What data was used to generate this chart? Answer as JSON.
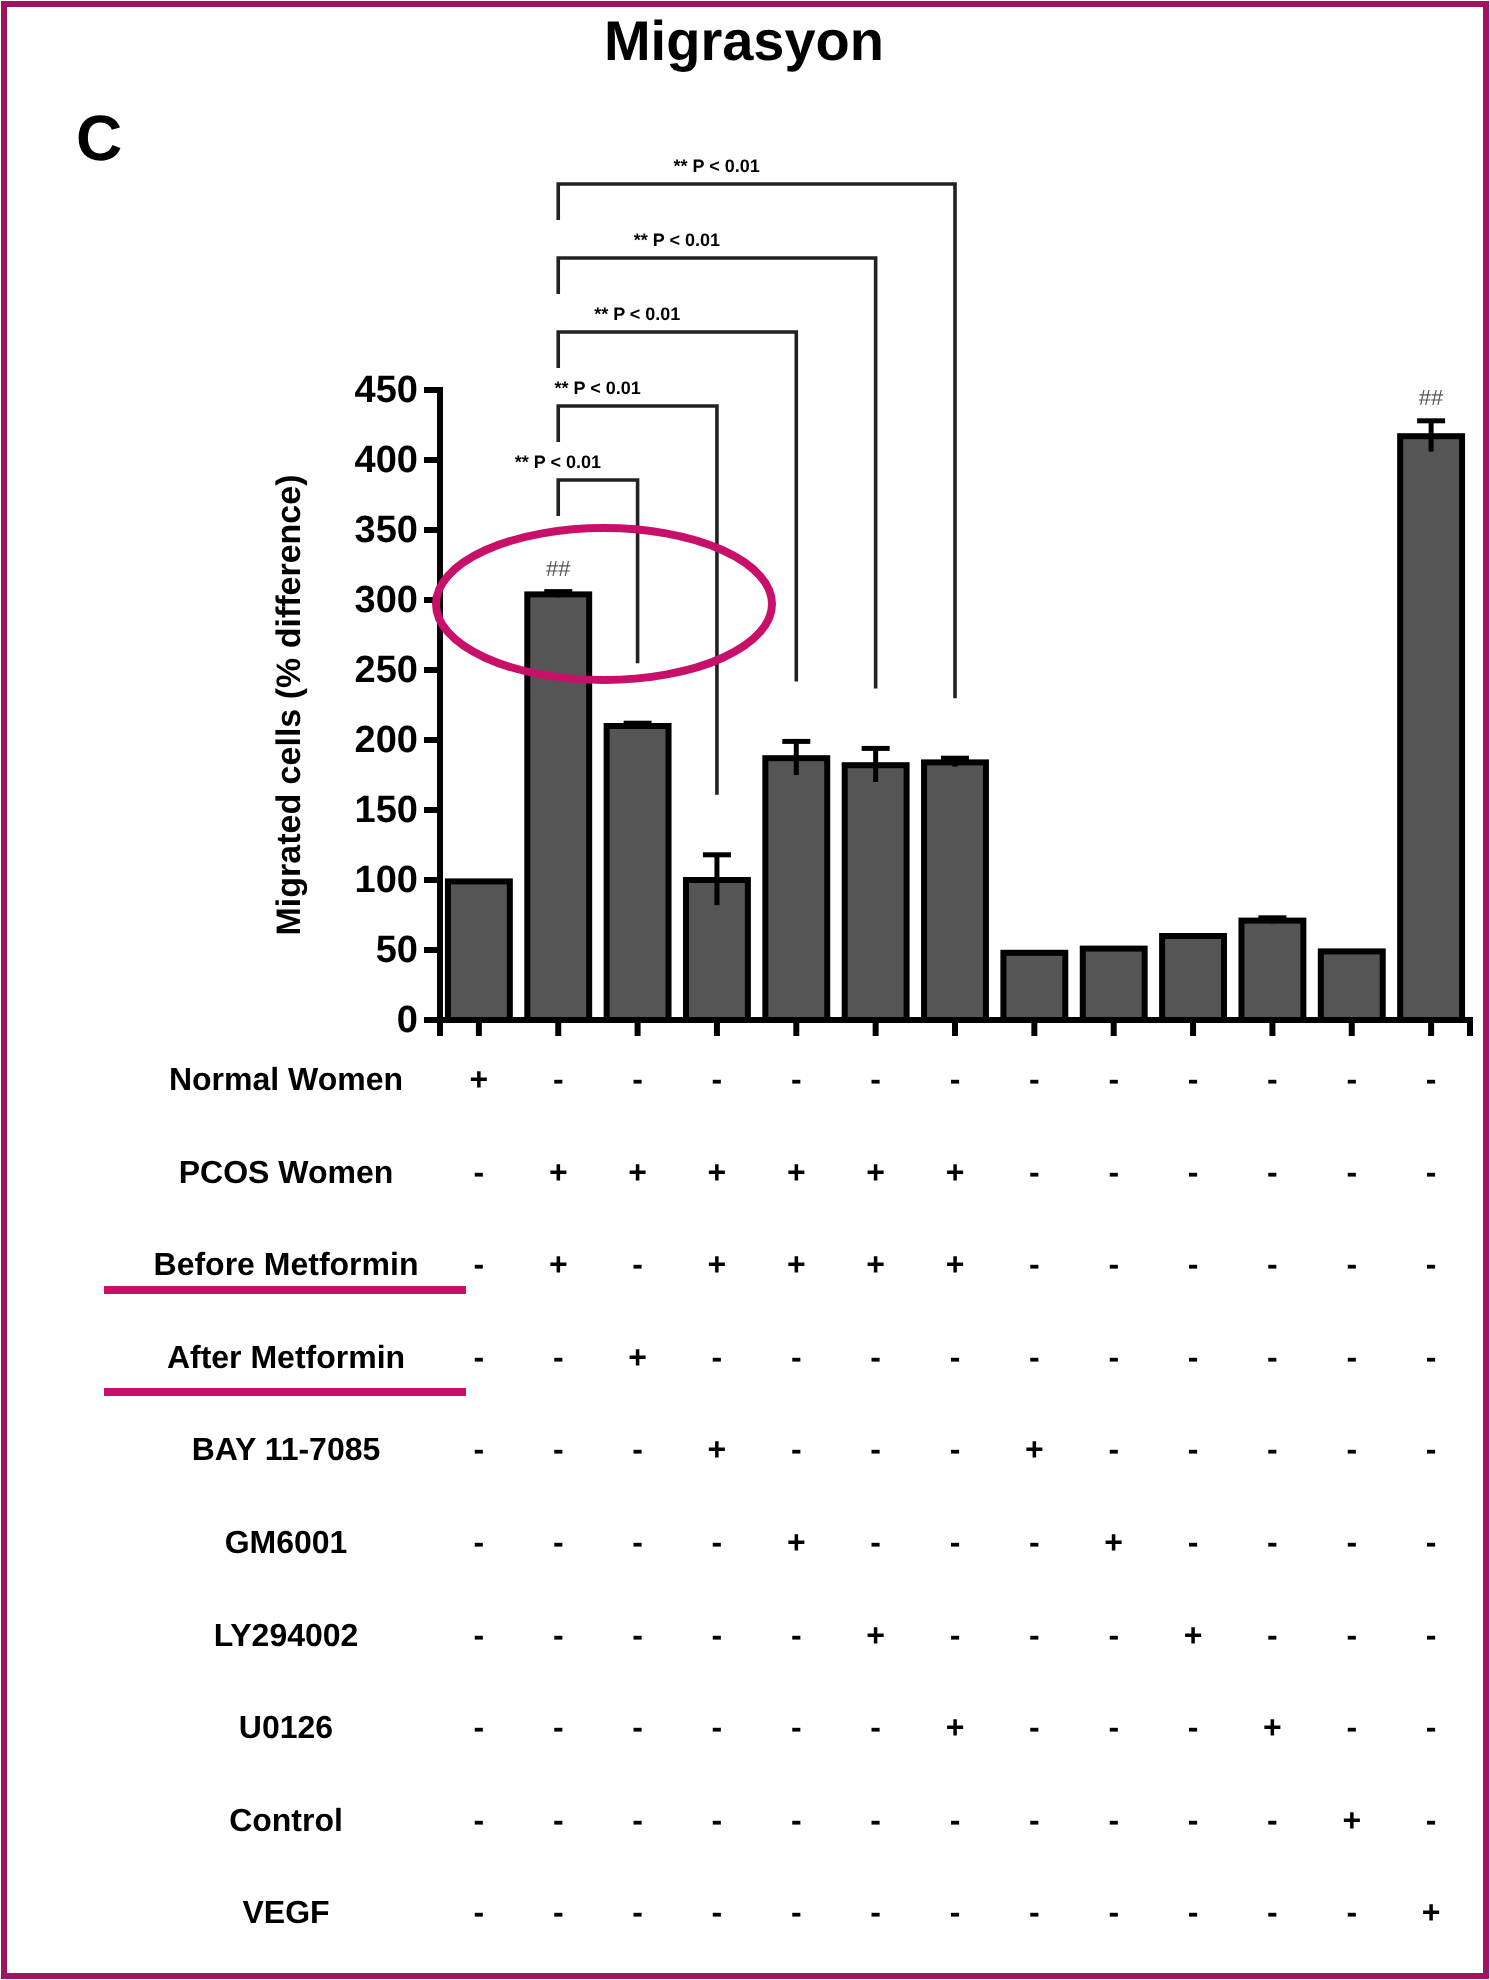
{
  "chart_data": {
    "type": "bar",
    "title": "Migrasyon",
    "ylabel": "Migrated cells (% difference)",
    "categories": [
      null,
      null,
      null,
      null,
      null,
      null,
      null,
      null,
      null,
      null,
      null,
      null,
      null
    ],
    "values": [
      99,
      304,
      210,
      100,
      187,
      182,
      184,
      48,
      51,
      60,
      71,
      49,
      417
    ],
    "errors": [
      null,
      2,
      2,
      18,
      12,
      12,
      3,
      null,
      null,
      null,
      2,
      null,
      11
    ],
    "color": "#555555",
    "ylim": [
      0,
      450
    ],
    "yticks": [
      0,
      50,
      100,
      150,
      200,
      250,
      300,
      350,
      400,
      450
    ],
    "annotations": [
      "C",
      "** P < 0.01",
      "** P < 0.01",
      "** P < 0.01",
      "** P < 0.01",
      "** P < 0.01",
      "##",
      "##",
      "Normal Women + - - - - - - - - - - - -",
      "PCOS Women - + + + + + + - - - - - -",
      "Before Metformin - + - + + + + - - - - - -",
      "After Metformin - - + - - - - - - - - - -",
      "BAY 11-7085 - - - + - - - + - - - - -",
      "GM6001 - - - - + - - - + - - - -",
      "LY294002 - - - - - + - - - + - - -",
      "U0126 - - - - - - + - - - + - -",
      "Control - - - - - - - - - - - + -",
      "VEGF - - - - - - - - - - - - +"
    ]
  }
}
